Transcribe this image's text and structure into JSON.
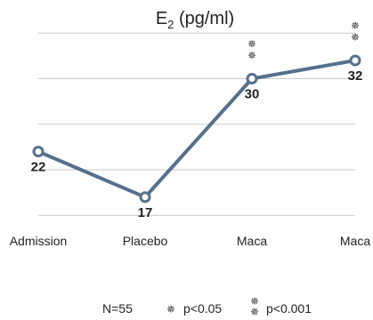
{
  "chart_data": {
    "type": "line",
    "title": "E",
    "title_subscript": "2",
    "title_suffix": " (pg/ml)",
    "categories": [
      "Admission",
      "Placebo",
      "Maca",
      "Maca"
    ],
    "series": [
      {
        "values": [
          22,
          17,
          30,
          32
        ],
        "color": "#55708c"
      }
    ],
    "data_labels": [
      "22",
      "17",
      "30",
      "32"
    ],
    "significance": [
      "",
      "",
      "**",
      "**"
    ],
    "ylim": [
      12,
      36
    ],
    "gridlines": [
      15,
      20,
      25,
      30,
      35
    ],
    "grid": true
  },
  "legend": {
    "n_label": "N=55",
    "single_star_label": "p<0.05",
    "double_star_label": "p<0.001"
  },
  "glyphs": {
    "star": "✵"
  }
}
